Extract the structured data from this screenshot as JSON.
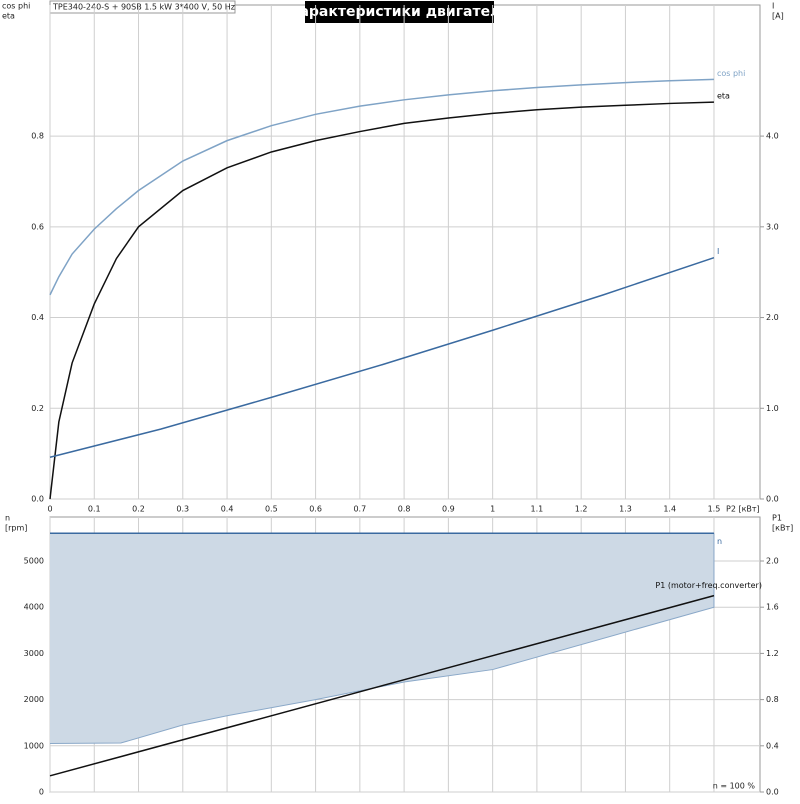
{
  "header": {
    "info": "TPE340-240-S + 90SB   1.5 kW   3*400 V, 50 Hz",
    "title": "Характеристики двигателя"
  },
  "chart_data": [
    {
      "type": "line",
      "ylabel": [
        "cos phi",
        "eta"
      ],
      "y2label": [
        "I",
        "[A]"
      ],
      "xlabel": "P2 [кВт]",
      "xlim": [
        0,
        1.604
      ],
      "xticks": [
        0,
        0.1,
        0.2,
        0.3,
        0.4,
        0.5,
        0.6,
        0.7,
        0.8,
        0.9,
        1.0,
        1.1,
        1.2,
        1.3,
        1.4,
        1.5
      ],
      "ylim": [
        0,
        1.089
      ],
      "yticks": [
        {
          "value": 0,
          "label": "0.0"
        },
        0.2,
        0.4,
        0.6,
        0.8
      ],
      "y2lim": [
        0,
        5.445
      ],
      "y2ticks": [
        {
          "value": 0,
          "label": "0.0"
        },
        {
          "value": 1,
          "label": "1.0"
        },
        {
          "value": 2,
          "label": "2.0"
        },
        {
          "value": 3,
          "label": "3.0"
        },
        {
          "value": 4,
          "label": "4.0"
        }
      ],
      "grid": true,
      "series": [
        {
          "name": "cos phi",
          "type": "line",
          "color": "#7fa3c6",
          "x": [
            0,
            0.02,
            0.05,
            0.1,
            0.15,
            0.2,
            0.3,
            0.4,
            0.5,
            0.6,
            0.7,
            0.8,
            0.9,
            1.0,
            1.1,
            1.2,
            1.3,
            1.4,
            1.5
          ],
          "values": [
            0.45,
            0.49,
            0.54,
            0.595,
            0.64,
            0.68,
            0.745,
            0.79,
            0.823,
            0.848,
            0.866,
            0.88,
            0.891,
            0.9,
            0.907,
            0.913,
            0.918,
            0.922,
            0.925
          ]
        },
        {
          "name": "eta",
          "type": "line",
          "color": "#111111",
          "x": [
            0,
            0.02,
            0.05,
            0.1,
            0.15,
            0.2,
            0.3,
            0.4,
            0.5,
            0.6,
            0.7,
            0.8,
            0.9,
            1.0,
            1.1,
            1.2,
            1.3,
            1.4,
            1.5
          ],
          "values": [
            0,
            0.17,
            0.3,
            0.43,
            0.53,
            0.6,
            0.68,
            0.73,
            0.765,
            0.79,
            0.81,
            0.828,
            0.84,
            0.85,
            0.858,
            0.864,
            0.868,
            0.872,
            0.875
          ]
        },
        {
          "name": "I",
          "type": "line",
          "axis": "y2",
          "color": "#3a6aa0",
          "x": [
            0,
            0.25,
            0.5,
            0.75,
            1.0,
            1.25,
            1.5
          ],
          "values": [
            0.46,
            0.77,
            1.12,
            1.48,
            1.86,
            2.25,
            2.66
          ]
        }
      ]
    },
    {
      "type": "area",
      "ylabel": [
        "n",
        "[rpm]"
      ],
      "y2label": [
        "P1",
        "[кВт]"
      ],
      "note": "n = 100 %",
      "xlim": [
        0,
        1.604
      ],
      "xticks": [
        0,
        0.1,
        0.2,
        0.3,
        0.4,
        0.5,
        0.6,
        0.7,
        0.8,
        0.9,
        1.0,
        1.1,
        1.2,
        1.3,
        1.4,
        1.5
      ],
      "ylim": [
        0,
        5952
      ],
      "yticks": [
        0,
        1000,
        2000,
        3000,
        4000,
        5000
      ],
      "y2lim": [
        0,
        2.381
      ],
      "y2ticks": [
        {
          "value": 0,
          "label": "0.0"
        },
        0.4,
        0.8,
        1.2,
        1.6,
        {
          "value": 2,
          "label": "2.0"
        }
      ],
      "grid": true,
      "series": [
        {
          "name": "n",
          "type": "band",
          "color": "#3a6aa0",
          "fill": "#cdd9e5",
          "x": [
            0,
            0.16,
            0.3,
            0.4,
            0.6,
            0.8,
            1.0,
            1.5
          ],
          "values": [
            5600,
            5600,
            5600,
            5600,
            5600,
            5600,
            5600,
            5600
          ],
          "lower": [
            1050,
            1060,
            1450,
            1650,
            2000,
            2380,
            2650,
            4000
          ]
        },
        {
          "name": "P1 (motor+freq.converter)",
          "type": "line",
          "axis": "y2",
          "color": "#111111",
          "x": [
            0,
            1.5
          ],
          "values": [
            0.14,
            1.7
          ]
        }
      ]
    }
  ]
}
